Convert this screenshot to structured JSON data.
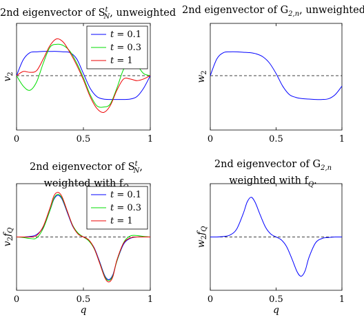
{
  "colors": {
    "blue": "#0000ff",
    "green": "#00dd00",
    "red": "#ee0000",
    "zero_line": "#000000"
  },
  "chart_data": [
    {
      "type": "line",
      "title_line1": "2nd eigenvector of S",
      "title_sup": "t",
      "title_sub": "N",
      "title_rest": ", unweighted",
      "xlabel": "",
      "ylabel_main": "v",
      "ylabel_sub": "2",
      "xlim": [
        0,
        1
      ],
      "ylim": [
        -1.3,
        1.25
      ],
      "xticks": [
        "0",
        "0.5",
        "1"
      ],
      "zero_line": true,
      "legend": "top-right",
      "series": [
        {
          "name": "t = 0.1",
          "legend_label": "t = 0.1",
          "color": "blue",
          "x": [
            0,
            0.05,
            0.1,
            0.15,
            0.2,
            0.25,
            0.3,
            0.35,
            0.4,
            0.45,
            0.5,
            0.55,
            0.6,
            0.65,
            0.7,
            0.75,
            0.8,
            0.85,
            0.9,
            0.95,
            1
          ],
          "y": [
            0,
            0.38,
            0.55,
            0.57,
            0.58,
            0.58,
            0.58,
            0.57,
            0.55,
            0.4,
            0.05,
            -0.3,
            -0.5,
            -0.56,
            -0.57,
            -0.57,
            -0.57,
            -0.56,
            -0.5,
            -0.3,
            0
          ]
        },
        {
          "name": "t = 0.3",
          "legend_label": "t = 0.3",
          "color": "green",
          "x": [
            0,
            0.05,
            0.1,
            0.15,
            0.2,
            0.25,
            0.3,
            0.35,
            0.4,
            0.45,
            0.5,
            0.55,
            0.6,
            0.65,
            0.7,
            0.75,
            0.8,
            0.85,
            0.9,
            0.95,
            1
          ],
          "y": [
            0,
            -0.25,
            -0.35,
            -0.15,
            0.3,
            0.68,
            0.75,
            0.72,
            0.58,
            0.3,
            -0.05,
            -0.45,
            -0.72,
            -0.75,
            -0.68,
            -0.3,
            0.15,
            0.35,
            0.25,
            0.05,
            0
          ]
        },
        {
          "name": "t = 1",
          "legend_label": "t = 1",
          "color": "red",
          "x": [
            0,
            0.05,
            0.1,
            0.15,
            0.2,
            0.25,
            0.3,
            0.35,
            0.4,
            0.45,
            0.5,
            0.55,
            0.6,
            0.65,
            0.7,
            0.75,
            0.8,
            0.85,
            0.9,
            0.95,
            1
          ],
          "y": [
            0,
            0.1,
            0.08,
            0.12,
            0.4,
            0.72,
            0.88,
            0.8,
            0.55,
            0.25,
            -0.1,
            -0.5,
            -0.78,
            -0.88,
            -0.72,
            -0.35,
            -0.08,
            -0.08,
            -0.12,
            -0.08,
            0
          ]
        }
      ]
    },
    {
      "type": "line",
      "title_line1": "2nd eigenvector of G",
      "title_sup": "",
      "title_sub": "2,n",
      "title_rest": ", unweighted.",
      "xlabel": "",
      "ylabel_main": "w",
      "ylabel_sub": "2",
      "xlim": [
        0,
        1
      ],
      "ylim": [
        -1.3,
        1.25
      ],
      "xticks": [
        "0",
        "0.5",
        "1"
      ],
      "zero_line": true,
      "series": [
        {
          "name": "",
          "color": "blue",
          "x": [
            0,
            0.05,
            0.1,
            0.15,
            0.2,
            0.25,
            0.3,
            0.35,
            0.4,
            0.45,
            0.5,
            0.55,
            0.6,
            0.65,
            0.7,
            0.75,
            0.8,
            0.85,
            0.9,
            0.95,
            1
          ],
          "y": [
            0,
            0.4,
            0.55,
            0.57,
            0.57,
            0.56,
            0.55,
            0.52,
            0.45,
            0.3,
            0.05,
            -0.25,
            -0.45,
            -0.52,
            -0.55,
            -0.56,
            -0.57,
            -0.57,
            -0.55,
            -0.45,
            -0.25
          ]
        }
      ]
    },
    {
      "type": "line",
      "title_line1": "2nd eigenvector of S",
      "title_sup": "t",
      "title_sub": "N",
      "title_rest": ",",
      "title_line2": "weighted with f",
      "title_line2_sub": "Q",
      "xlabel": "q",
      "ylabel_main": "v",
      "ylabel_sub": "2",
      "ylabel_main2": "f",
      "ylabel_sub2": "Q",
      "xlim": [
        0,
        1
      ],
      "ylim": [
        -1.1,
        1.1
      ],
      "xticks": [
        "0",
        "0.5",
        "1"
      ],
      "zero_line": true,
      "legend": "top-right",
      "series": [
        {
          "name": "t = 0.1",
          "legend_label": "t = 0.1",
          "color": "blue",
          "x": [
            0,
            0.05,
            0.1,
            0.15,
            0.2,
            0.25,
            0.28,
            0.31,
            0.34,
            0.38,
            0.42,
            0.46,
            0.5,
            0.54,
            0.58,
            0.62,
            0.66,
            0.69,
            0.72,
            0.75,
            0.8,
            0.85,
            0.9,
            0.95,
            1
          ],
          "y": [
            0,
            0.0,
            0.01,
            0.05,
            0.2,
            0.55,
            0.78,
            0.86,
            0.78,
            0.5,
            0.22,
            0.07,
            0.0,
            -0.07,
            -0.22,
            -0.5,
            -0.8,
            -0.88,
            -0.78,
            -0.5,
            -0.15,
            -0.03,
            0.0,
            0.0,
            0
          ]
        },
        {
          "name": "t = 0.3",
          "legend_label": "t = 0.3",
          "color": "green",
          "x": [
            0,
            0.05,
            0.1,
            0.15,
            0.2,
            0.25,
            0.28,
            0.31,
            0.34,
            0.38,
            0.42,
            0.46,
            0.5,
            0.54,
            0.58,
            0.62,
            0.66,
            0.69,
            0.72,
            0.75,
            0.8,
            0.85,
            0.9,
            0.95,
            1
          ],
          "y": [
            0,
            -0.01,
            -0.03,
            -0.02,
            0.18,
            0.55,
            0.8,
            0.88,
            0.8,
            0.52,
            0.24,
            0.08,
            0.0,
            -0.08,
            -0.24,
            -0.52,
            -0.82,
            -0.9,
            -0.8,
            -0.5,
            -0.12,
            0.02,
            0.03,
            0.01,
            0
          ]
        },
        {
          "name": "t = 1",
          "legend_label": "t = 1",
          "color": "red",
          "x": [
            0,
            0.05,
            0.1,
            0.15,
            0.2,
            0.25,
            0.28,
            0.31,
            0.34,
            0.38,
            0.42,
            0.46,
            0.5,
            0.54,
            0.58,
            0.62,
            0.66,
            0.69,
            0.72,
            0.75,
            0.8,
            0.85,
            0.9,
            0.95,
            1
          ],
          "y": [
            0,
            0.0,
            0.0,
            0.03,
            0.22,
            0.6,
            0.85,
            0.92,
            0.83,
            0.53,
            0.23,
            0.06,
            0.0,
            -0.06,
            -0.23,
            -0.53,
            -0.84,
            -0.93,
            -0.82,
            -0.48,
            -0.13,
            -0.02,
            0.0,
            0.0,
            0
          ]
        }
      ]
    },
    {
      "type": "line",
      "title_line1": "2nd eigenvector of G",
      "title_sup": "",
      "title_sub": "2,n",
      "title_rest": "",
      "title_line2": "weighted with f",
      "title_line2_sub": "Q",
      "title_line2_rest": ".",
      "xlabel": "q",
      "ylabel_main": "w",
      "ylabel_sub": "2",
      "ylabel_main2": "f",
      "ylabel_sub2": "Q",
      "xlim": [
        0,
        1
      ],
      "ylim": [
        -1.1,
        1.1
      ],
      "xticks": [
        "0",
        "0.5",
        "1"
      ],
      "zero_line": true,
      "series": [
        {
          "name": "",
          "color": "blue",
          "x": [
            0,
            0.05,
            0.1,
            0.15,
            0.2,
            0.25,
            0.28,
            0.31,
            0.34,
            0.38,
            0.42,
            0.46,
            0.5,
            0.54,
            0.58,
            0.62,
            0.66,
            0.69,
            0.72,
            0.75,
            0.8,
            0.85,
            0.9,
            0.95,
            1
          ],
          "y": [
            0,
            0.0,
            0.01,
            0.04,
            0.16,
            0.48,
            0.72,
            0.82,
            0.72,
            0.45,
            0.2,
            0.06,
            0.0,
            -0.06,
            -0.2,
            -0.45,
            -0.72,
            -0.81,
            -0.7,
            -0.42,
            -0.12,
            -0.03,
            -0.01,
            0.0,
            0
          ]
        }
      ]
    }
  ]
}
